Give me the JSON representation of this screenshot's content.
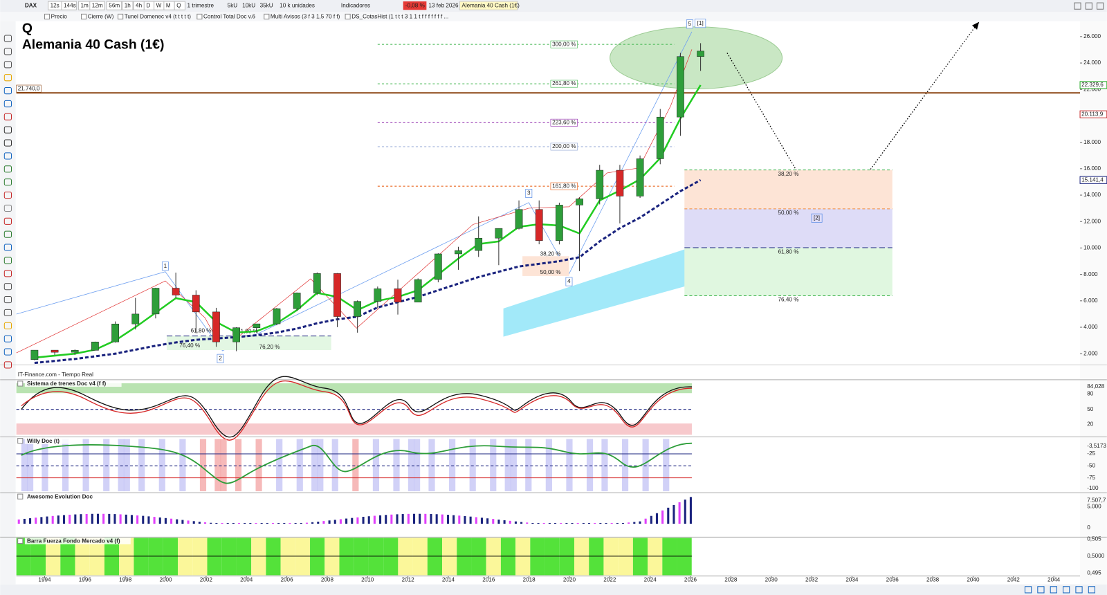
{
  "toolbar": {
    "symbol": "DAX",
    "periods": [
      "12s",
      "144s",
      "1m",
      "12m",
      "56m",
      "1h",
      "4h",
      "D",
      "W",
      "M",
      "Q"
    ],
    "period_name": "1 trimestre",
    "units": [
      "5kU",
      "10kU",
      "35kU"
    ],
    "units_name": "10 k unidades",
    "indicators": "Indicadores",
    "change": "-0,08 %",
    "date": "13 feb 2026",
    "instrument": "Alemania 40 Cash (1€)"
  },
  "indicator_bar": [
    "Precio",
    "Cierre (W)",
    "Tunel Domenec v4 (t t t t t)",
    "Control Total Doc v.6",
    "Multi Avisos (3 f 3 1,5 70 f f)",
    "DS_CotasHist (1 t t t 3 1 1 t f f f f f f f ..."
  ],
  "chart_data": {
    "type": "candlestick",
    "period_label": "Q",
    "title": "Alemania 40 Cash (1€)",
    "source": "IT-Finance.com - Tiempo Real",
    "x": [
      1993,
      1994,
      1995,
      1996,
      1997,
      1998,
      1999,
      2000,
      2001,
      2002,
      2003,
      2004,
      2005,
      2006,
      2007,
      2008,
      2009,
      2010,
      2011,
      2012,
      2013,
      2014,
      2015,
      2016,
      2017,
      2018,
      2019,
      2020,
      2021,
      2022,
      2023,
      2024,
      2025,
      2026
    ],
    "open": [
      1550,
      2267,
      2107,
      2254,
      2889,
      4250,
      5002,
      6958,
      6434,
      5160,
      2893,
      3965,
      4256,
      5408,
      6597,
      8067,
      4810,
      5957,
      6914,
      5898,
      7612,
      9552,
      9806,
      10743,
      11481,
      12918,
      10559,
      13249,
      13719,
      15885,
      13924,
      16752,
      19909,
      24490
    ],
    "high": [
      2270,
      2270,
      2320,
      2910,
      4440,
      6220,
      6990,
      8136,
      6800,
      5470,
      4000,
      4260,
      5460,
      6630,
      8150,
      8100,
      6030,
      7080,
      7600,
      7700,
      9600,
      10090,
      12390,
      11480,
      13600,
      13600,
      13430,
      13830,
      16290,
      16290,
      17000,
      20520,
      24770,
      25500
    ],
    "low": [
      1500,
      1910,
      1910,
      2250,
      2840,
      3830,
      4670,
      6200,
      3540,
      2520,
      2190,
      3620,
      4150,
      5240,
      6440,
      4010,
      3590,
      5430,
      4960,
      5900,
      7400,
      8350,
      9320,
      8700,
      11400,
      10280,
      10270,
      8250,
      13300,
      11860,
      13790,
      16340,
      18490,
      23400
    ],
    "close": [
      2267,
      2107,
      2254,
      2889,
      4250,
      5002,
      6958,
      6434,
      5160,
      2893,
      3965,
      4256,
      5408,
      6597,
      8067,
      4810,
      5957,
      6914,
      5898,
      7612,
      9552,
      9806,
      10743,
      11481,
      12918,
      10559,
      13249,
      13719,
      15885,
      13924,
      16752,
      19909,
      24490,
      24900
    ],
    "up_color": "#2e9e3a",
    "down_color": "#d62828",
    "lines": [
      {
        "color": "#22cc22",
        "dashed": false,
        "values": [
          1700,
          1850,
          2000,
          2300,
          3000,
          4000,
          5100,
          6200,
          5900,
          4400,
          3600,
          3700,
          4300,
          5300,
          6600,
          6300,
          5300,
          6000,
          6300,
          6800,
          8000,
          9200,
          10300,
          10500,
          11600,
          11800,
          11700,
          11100,
          13600,
          14350,
          15200,
          16800,
          19800,
          22329.6
        ]
      },
      {
        "color": "#1a237e",
        "dashed": true,
        "values": [
          1300,
          1450,
          1600,
          1800,
          2000,
          2300,
          2600,
          2850,
          3050,
          3150,
          3250,
          3400,
          3600,
          3900,
          4300,
          4600,
          4800,
          5500,
          5900,
          6300,
          6800,
          7300,
          7800,
          8200,
          8600,
          8800,
          9000,
          9300,
          10500,
          11500,
          12300,
          13300,
          14300,
          15141.4
        ]
      }
    ],
    "xlim": [
      1992.6,
      2045.3
    ],
    "xticks": [
      1994,
      1996,
      1998,
      2000,
      2002,
      2004,
      2006,
      2008,
      2010,
      2012,
      2014,
      2016,
      2018,
      2020,
      2022,
      2024,
      2026,
      2028,
      2030,
      2032,
      2034,
      2036,
      2038,
      2040,
      2042,
      2044
    ],
    "ylim": [
      1150,
      27700
    ],
    "yticks": [
      {
        "value": 2000,
        "label": "2.000"
      },
      {
        "value": 4000,
        "label": "4.000"
      },
      {
        "value": 6000,
        "label": "6.000"
      },
      {
        "value": 8000,
        "label": "8.000"
      },
      {
        "value": 10000,
        "label": "10.000"
      },
      {
        "value": 12000,
        "label": "12.000"
      },
      {
        "value": 14000,
        "label": "14.000"
      },
      {
        "value": 16000,
        "label": "16.000"
      },
      {
        "value": 18000,
        "label": "18.000"
      },
      {
        "value": 20000,
        "label": "20.000"
      },
      {
        "value": 22000,
        "label": "22.000"
      },
      {
        "value": 24000,
        "label": "24.000"
      },
      {
        "value": 26000,
        "label": "26.000"
      }
    ],
    "hline": {
      "value": 21740,
      "label": "21.740,0",
      "color": "#8b4513"
    },
    "price_tags": [
      {
        "value": 22329.6,
        "label": "22.329,6",
        "color": "#22aa22"
      },
      {
        "value": 20113.9,
        "label": "20.113,9",
        "color": "#c62828"
      },
      {
        "value": 15141.4,
        "label": "15.141,4",
        "color": "#1a237e"
      }
    ],
    "extension_levels": [
      {
        "value": 25410,
        "label": "300,00 %",
        "color": "#3cb44b"
      },
      {
        "value": 22428,
        "label": "261,80 %",
        "color": "#3cb44b"
      },
      {
        "value": 19486,
        "label": "223,60 %",
        "color": "#8e24aa"
      },
      {
        "value": 17668,
        "label": "200,00 %",
        "color": "#90a4d4"
      },
      {
        "value": 14674,
        "label": "161,80 %",
        "color": "#e65100"
      }
    ],
    "retracement_levels": [
      {
        "value": 15904,
        "label": "38,20 %",
        "color": "#3cb44b",
        "fill": "#fde4d6"
      },
      {
        "value": 12963,
        "label": "50,00 %",
        "color": "#ef8a3c",
        "fill": "#dedcf7"
      },
      {
        "value": 10021,
        "label": "61,80 %",
        "color": "#1a237e",
        "fill": "#e0f7e0"
      },
      {
        "value": 6385,
        "label": "76,40 %",
        "color": "#3cb44b"
      }
    ],
    "minor_labels": [
      "61,80 %",
      "76,40 %",
      "61,80 %",
      "76,20 %",
      "38,20 %",
      "50,00 %"
    ],
    "waves": [
      "1",
      "2",
      "3",
      "4",
      "5",
      "[1]",
      "[2]"
    ]
  },
  "panels": [
    {
      "title": "Sistema de trenes Doc v4 (f f)",
      "ticks": [
        "84,028",
        "80",
        "50",
        "20"
      ]
    },
    {
      "title": "Willy Doc (t)",
      "ticks": [
        "-3,5173",
        "-25",
        "-50",
        "-75",
        "-100"
      ]
    },
    {
      "title": "Awesome Evolution Doc",
      "ticks": [
        "7.507,7",
        "5.000",
        "0"
      ]
    },
    {
      "title": "Barra Fuerza Fondo Mercado v4 (f)",
      "ticks": [
        "0,505",
        "0,5000",
        "0,495"
      ]
    }
  ]
}
